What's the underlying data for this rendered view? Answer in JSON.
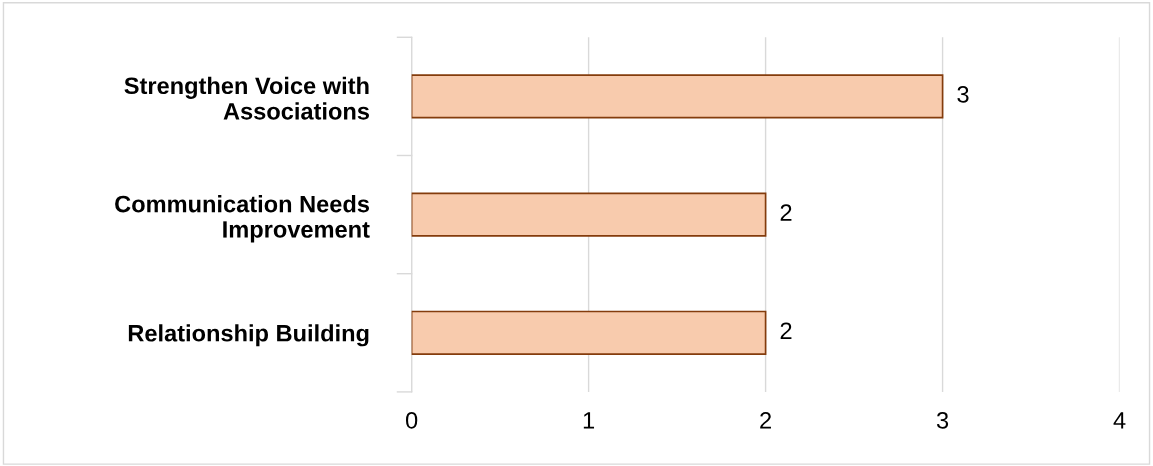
{
  "chart_data": {
    "type": "bar",
    "orientation": "horizontal",
    "categories": [
      "Strengthen Voice with Associations",
      "Communication Needs Improvement",
      "Relationship Building"
    ],
    "values": [
      3,
      2,
      2
    ],
    "color": "#f8cbad",
    "xlim": [
      0,
      4
    ],
    "xticks": [
      0,
      1,
      2,
      3,
      4
    ],
    "grid": "x",
    "data_labels": true
  }
}
